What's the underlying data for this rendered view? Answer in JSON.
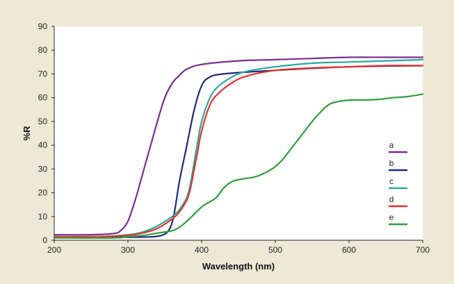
{
  "chart_data": {
    "type": "line",
    "xlabel": "Wavelength (nm)",
    "ylabel": "%R",
    "xlim": [
      200,
      700
    ],
    "ylim": [
      0,
      90
    ],
    "xticks": [
      200,
      300,
      400,
      500,
      600,
      700
    ],
    "yticks": [
      0,
      10,
      20,
      30,
      40,
      50,
      60,
      70,
      80,
      90
    ],
    "grid": false,
    "legend_position": "right",
    "series": [
      {
        "name": "a",
        "color": "#7b2d8e",
        "points": [
          [
            200,
            2.3
          ],
          [
            250,
            2.3
          ],
          [
            280,
            2.8
          ],
          [
            290,
            4
          ],
          [
            300,
            8
          ],
          [
            310,
            17
          ],
          [
            320,
            28
          ],
          [
            330,
            39
          ],
          [
            340,
            50
          ],
          [
            350,
            60
          ],
          [
            360,
            66
          ],
          [
            370,
            69.5
          ],
          [
            380,
            72
          ],
          [
            400,
            74
          ],
          [
            450,
            75.5
          ],
          [
            500,
            76
          ],
          [
            550,
            76.5
          ],
          [
            600,
            77
          ],
          [
            650,
            77
          ],
          [
            700,
            77
          ]
        ]
      },
      {
        "name": "b",
        "color": "#1f2a7a",
        "points": [
          [
            200,
            1.3
          ],
          [
            300,
            1.3
          ],
          [
            330,
            1.4
          ],
          [
            345,
            2
          ],
          [
            355,
            4
          ],
          [
            362,
            10
          ],
          [
            370,
            25
          ],
          [
            380,
            40
          ],
          [
            390,
            55
          ],
          [
            400,
            65
          ],
          [
            410,
            68.5
          ],
          [
            430,
            70
          ],
          [
            500,
            71.5
          ],
          [
            600,
            73
          ],
          [
            700,
            73.5
          ]
        ]
      },
      {
        "name": "c",
        "color": "#2aa89a",
        "points": [
          [
            200,
            1.5
          ],
          [
            260,
            1.5
          ],
          [
            300,
            2.3
          ],
          [
            320,
            3.5
          ],
          [
            340,
            6
          ],
          [
            360,
            10
          ],
          [
            370,
            13
          ],
          [
            380,
            18
          ],
          [
            385,
            24
          ],
          [
            390,
            33
          ],
          [
            395,
            42
          ],
          [
            400,
            50
          ],
          [
            410,
            59
          ],
          [
            420,
            64
          ],
          [
            440,
            68.5
          ],
          [
            460,
            71
          ],
          [
            500,
            73
          ],
          [
            550,
            74.5
          ],
          [
            600,
            75
          ],
          [
            650,
            75.5
          ],
          [
            700,
            76
          ]
        ]
      },
      {
        "name": "d",
        "color": "#e53030",
        "points": [
          [
            200,
            1.5
          ],
          [
            260,
            1.5
          ],
          [
            300,
            2.1
          ],
          [
            320,
            3
          ],
          [
            340,
            5
          ],
          [
            360,
            9
          ],
          [
            370,
            12
          ],
          [
            380,
            17
          ],
          [
            385,
            22
          ],
          [
            390,
            30
          ],
          [
            395,
            38
          ],
          [
            400,
            46
          ],
          [
            410,
            56
          ],
          [
            420,
            61
          ],
          [
            440,
            66
          ],
          [
            460,
            69
          ],
          [
            500,
            71.5
          ],
          [
            550,
            72.5
          ],
          [
            600,
            73
          ],
          [
            650,
            73.5
          ],
          [
            700,
            73.5
          ]
        ]
      },
      {
        "name": "e",
        "color": "#2e9e3c",
        "points": [
          [
            200,
            1
          ],
          [
            280,
            1
          ],
          [
            300,
            1.5
          ],
          [
            320,
            2
          ],
          [
            340,
            3
          ],
          [
            360,
            4
          ],
          [
            370,
            5.5
          ],
          [
            380,
            8
          ],
          [
            390,
            11
          ],
          [
            400,
            14
          ],
          [
            410,
            16
          ],
          [
            420,
            18
          ],
          [
            430,
            22
          ],
          [
            440,
            24.5
          ],
          [
            450,
            25.5
          ],
          [
            460,
            26
          ],
          [
            470,
            26.5
          ],
          [
            480,
            27.5
          ],
          [
            490,
            29
          ],
          [
            500,
            31
          ],
          [
            510,
            34
          ],
          [
            520,
            38
          ],
          [
            530,
            42
          ],
          [
            540,
            46
          ],
          [
            550,
            50
          ],
          [
            560,
            53.5
          ],
          [
            570,
            56.5
          ],
          [
            580,
            58
          ],
          [
            600,
            59
          ],
          [
            620,
            59
          ],
          [
            640,
            59.3
          ],
          [
            660,
            60
          ],
          [
            680,
            60.5
          ],
          [
            700,
            61.5
          ]
        ]
      }
    ]
  }
}
